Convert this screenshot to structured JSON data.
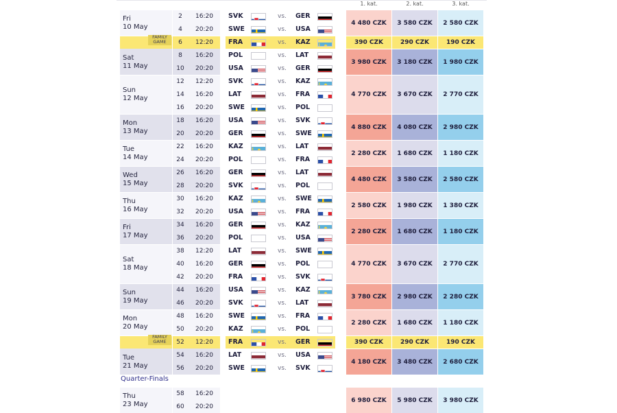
{
  "headers": [
    "1. kat.",
    "2. kat.",
    "3. kat."
  ],
  "family_badge": [
    "FAMILY",
    "GAME"
  ],
  "vs_label": "vs.",
  "qf_label": "Quarter-Finals",
  "rows": [
    {
      "no": "2",
      "time": "16:20",
      "home": "SVK",
      "away": "GER",
      "hf": "SVK",
      "af": "GER"
    },
    {
      "no": "4",
      "time": "20:20",
      "home": "SWE",
      "away": "USA",
      "hf": "SWE",
      "af": "USA"
    },
    {
      "no": "6",
      "time": "12:20",
      "home": "FRA",
      "away": "KAZ",
      "hf": "FRA",
      "af": "KAZ",
      "family": true
    },
    {
      "no": "8",
      "time": "16:20",
      "home": "POL",
      "away": "LAT",
      "hf": "POL",
      "af": "LAT"
    },
    {
      "no": "10",
      "time": "20:20",
      "home": "USA",
      "away": "GER",
      "hf": "USA",
      "af": "GER"
    },
    {
      "no": "12",
      "time": "12:20",
      "home": "SVK",
      "away": "KAZ",
      "hf": "SVK",
      "af": "KAZ"
    },
    {
      "no": "14",
      "time": "16:20",
      "home": "LAT",
      "away": "FRA",
      "hf": "LAT",
      "af": "FRA"
    },
    {
      "no": "16",
      "time": "20:20",
      "home": "SWE",
      "away": "POL",
      "hf": "SWE",
      "af": "POL"
    },
    {
      "no": "18",
      "time": "16:20",
      "home": "USA",
      "away": "SVK",
      "hf": "USA",
      "af": "SVK"
    },
    {
      "no": "20",
      "time": "20:20",
      "home": "GER",
      "away": "SWE",
      "hf": "GER",
      "af": "SWE"
    },
    {
      "no": "22",
      "time": "16:20",
      "home": "KAZ",
      "away": "LAT",
      "hf": "KAZ",
      "af": "LAT"
    },
    {
      "no": "24",
      "time": "20:20",
      "home": "POL",
      "away": "FRA",
      "hf": "POL",
      "af": "FRA"
    },
    {
      "no": "26",
      "time": "16:20",
      "home": "GER",
      "away": "LAT",
      "hf": "GER",
      "af": "LAT"
    },
    {
      "no": "28",
      "time": "20:20",
      "home": "SVK",
      "away": "POL",
      "hf": "SVK",
      "af": "POL"
    },
    {
      "no": "30",
      "time": "16:20",
      "home": "KAZ",
      "away": "SWE",
      "hf": "KAZ",
      "af": "SWE"
    },
    {
      "no": "32",
      "time": "20:20",
      "home": "USA",
      "away": "FRA",
      "hf": "USA",
      "af": "FRA"
    },
    {
      "no": "34",
      "time": "16:20",
      "home": "GER",
      "away": "KAZ",
      "hf": "GER",
      "af": "KAZ"
    },
    {
      "no": "36",
      "time": "20:20",
      "home": "POL",
      "away": "USA",
      "hf": "POL",
      "af": "USA"
    },
    {
      "no": "38",
      "time": "12:20",
      "home": "LAT",
      "away": "SWE",
      "hf": "LAT",
      "af": "SWE"
    },
    {
      "no": "40",
      "time": "16:20",
      "home": "GER",
      "away": "POL",
      "hf": "GER",
      "af": "POL"
    },
    {
      "no": "42",
      "time": "20:20",
      "home": "FRA",
      "away": "SVK",
      "hf": "FRA",
      "af": "SVK"
    },
    {
      "no": "44",
      "time": "16:20",
      "home": "USA",
      "away": "KAZ",
      "hf": "USA",
      "af": "KAZ"
    },
    {
      "no": "46",
      "time": "20:20",
      "home": "SVK",
      "away": "LAT",
      "hf": "SVK",
      "af": "LAT"
    },
    {
      "no": "48",
      "time": "16:20",
      "home": "SWE",
      "away": "FRA",
      "hf": "SWE",
      "af": "FRA"
    },
    {
      "no": "50",
      "time": "20:20",
      "home": "KAZ",
      "away": "POL",
      "hf": "KAZ",
      "af": "POL"
    },
    {
      "no": "52",
      "time": "12:20",
      "home": "FRA",
      "away": "GER",
      "hf": "FRA",
      "af": "GER",
      "family": true
    },
    {
      "no": "54",
      "time": "16:20",
      "home": "LAT",
      "away": "USA",
      "hf": "LAT",
      "af": "USA"
    },
    {
      "no": "56",
      "time": "20:20",
      "home": "SWE",
      "away": "SVK",
      "hf": "SWE",
      "af": "SVK"
    },
    {
      "no": "58",
      "time": "16:20"
    },
    {
      "no": "60",
      "time": "20:20"
    }
  ],
  "days": [
    {
      "name": "Fri",
      "date": "10 May",
      "rows": [
        0,
        1
      ],
      "shade": "odd"
    },
    {
      "name": "Sat",
      "date": "11 May",
      "rows": [
        2,
        3,
        4
      ],
      "shade": "even",
      "family_row": 2
    },
    {
      "name": "Sun",
      "date": "12 May",
      "rows": [
        5,
        6,
        7
      ],
      "shade": "odd"
    },
    {
      "name": "Mon",
      "date": "13 May",
      "rows": [
        8,
        9
      ],
      "shade": "even"
    },
    {
      "name": "Tue",
      "date": "14 May",
      "rows": [
        10,
        11
      ],
      "shade": "odd"
    },
    {
      "name": "Wed",
      "date": "15 May",
      "rows": [
        12,
        13
      ],
      "shade": "even"
    },
    {
      "name": "Thu",
      "date": "16 May",
      "rows": [
        14,
        15
      ],
      "shade": "odd"
    },
    {
      "name": "Fri",
      "date": "17 May",
      "rows": [
        16,
        17
      ],
      "shade": "even"
    },
    {
      "name": "Sat",
      "date": "18 May",
      "rows": [
        18,
        19,
        20
      ],
      "shade": "odd"
    },
    {
      "name": "Sun",
      "date": "19 May",
      "rows": [
        21,
        22
      ],
      "shade": "even"
    },
    {
      "name": "Mon",
      "date": "20 May",
      "rows": [
        23,
        24
      ],
      "shade": "odd"
    },
    {
      "name": "Tue",
      "date": "21 May",
      "rows": [
        25,
        26,
        27
      ],
      "shade": "even",
      "family_row": 25
    },
    {
      "name": "Thu",
      "date": "23 May",
      "rows": [
        28,
        29
      ],
      "shade": "odd"
    }
  ],
  "prices": [
    {
      "rows": [
        0,
        1
      ],
      "p": [
        "4 480 CZK",
        "3 580 CZK",
        "2 580 CZK"
      ],
      "tone": "light"
    },
    {
      "rows": [
        2
      ],
      "p": [
        "390 CZK",
        "290 CZK",
        "190 CZK"
      ],
      "tone": "family"
    },
    {
      "rows": [
        3,
        4
      ],
      "p": [
        "3 980 CZK",
        "3 180 CZK",
        "1 980 CZK"
      ],
      "tone": "dark"
    },
    {
      "rows": [
        5,
        6,
        7
      ],
      "p": [
        "4 770 CZK",
        "3 670 CZK",
        "2 770 CZK"
      ],
      "tone": "light"
    },
    {
      "rows": [
        8,
        9
      ],
      "p": [
        "4 880 CZK",
        "4 080 CZK",
        "2 980 CZK"
      ],
      "tone": "dark"
    },
    {
      "rows": [
        10,
        11
      ],
      "p": [
        "2 280 CZK",
        "1 680 CZK",
        "1 180 CZK"
      ],
      "tone": "light"
    },
    {
      "rows": [
        12,
        13
      ],
      "p": [
        "4 480 CZK",
        "3 580 CZK",
        "2 580 CZK"
      ],
      "tone": "dark"
    },
    {
      "rows": [
        14,
        15
      ],
      "p": [
        "2 580 CZK",
        "1 980 CZK",
        "1 380 CZK"
      ],
      "tone": "light"
    },
    {
      "rows": [
        16,
        17
      ],
      "p": [
        "2 280 CZK",
        "1 680 CZK",
        "1 180 CZK"
      ],
      "tone": "dark"
    },
    {
      "rows": [
        18,
        19,
        20
      ],
      "p": [
        "4 770 CZK",
        "3 670 CZK",
        "2 770 CZK"
      ],
      "tone": "light"
    },
    {
      "rows": [
        21,
        22
      ],
      "p": [
        "3 780 CZK",
        "2 980 CZK",
        "2 280 CZK"
      ],
      "tone": "dark"
    },
    {
      "rows": [
        23,
        24
      ],
      "p": [
        "2 280 CZK",
        "1 680 CZK",
        "1 180 CZK"
      ],
      "tone": "light"
    },
    {
      "rows": [
        25
      ],
      "p": [
        "390 CZK",
        "290 CZK",
        "190 CZK"
      ],
      "tone": "family"
    },
    {
      "rows": [
        26,
        27
      ],
      "p": [
        "4 180 CZK",
        "3 480 CZK",
        "2 680 CZK"
      ],
      "tone": "dark"
    },
    {
      "rows": [
        28,
        29
      ],
      "p": [
        "6 980 CZK",
        "5 980 CZK",
        "3 980 CZK"
      ],
      "tone": "light"
    }
  ],
  "colors": {
    "cat1_light": "#fbd3cc",
    "cat1_dark": "#f4a596",
    "cat2_light": "#dcdcec",
    "cat2_dark": "#a9b2d9",
    "cat3_light": "#d8eef8",
    "cat3_dark": "#94cfec",
    "family": "#fbe774"
  }
}
